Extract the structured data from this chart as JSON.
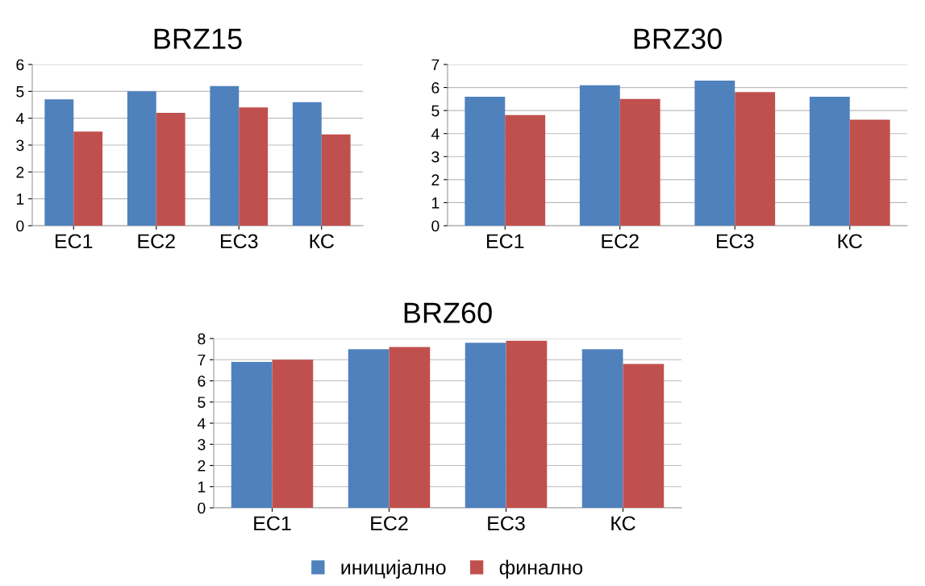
{
  "chart_data": [
    {
      "type": "bar",
      "title": "BRZ15",
      "categories": [
        "ЕС1",
        "ЕС2",
        "ЕС3",
        "КС"
      ],
      "ylim": [
        0,
        6
      ],
      "yticks": [
        0,
        1,
        2,
        3,
        4,
        5,
        6
      ],
      "grid": "y",
      "series": [
        {
          "color": "#4f81bd",
          "values": [
            4.7,
            5.0,
            5.2,
            4.6
          ]
        },
        {
          "color": "#c0504d",
          "values": [
            3.5,
            4.2,
            4.4,
            3.4
          ]
        }
      ]
    },
    {
      "type": "bar",
      "title": "BRZ30",
      "categories": [
        "ЕС1",
        "ЕС2",
        "ЕС3",
        "КС"
      ],
      "ylim": [
        0,
        7
      ],
      "yticks": [
        0,
        1,
        2,
        3,
        4,
        5,
        6,
        7
      ],
      "grid": "y",
      "series": [
        {
          "color": "#4f81bd",
          "values": [
            5.6,
            6.1,
            6.3,
            5.6
          ]
        },
        {
          "color": "#c0504d",
          "values": [
            4.8,
            5.5,
            5.8,
            4.6
          ]
        }
      ]
    },
    {
      "type": "bar",
      "title": "BRZ60",
      "categories": [
        "ЕС1",
        "ЕС2",
        "ЕС3",
        "КС"
      ],
      "ylim": [
        0,
        8
      ],
      "yticks": [
        0,
        1,
        2,
        3,
        4,
        5,
        6,
        7,
        8
      ],
      "grid": "y",
      "legend": "bottom",
      "series": [
        {
          "name": "иницијално",
          "color": "#4f81bd",
          "values": [
            6.9,
            7.5,
            7.8,
            7.5
          ]
        },
        {
          "name": "финално",
          "color": "#c0504d",
          "values": [
            7.0,
            7.6,
            7.9,
            6.8
          ]
        }
      ]
    }
  ]
}
